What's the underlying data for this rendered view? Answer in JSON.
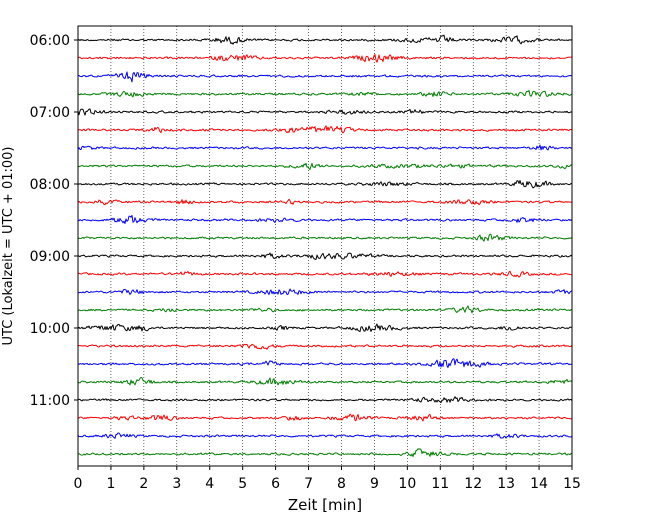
{
  "chart_data": {
    "type": "line",
    "title": "",
    "xlabel": "Zeit  [min]",
    "ylabel": "UTC (Lokalzeit = UTC + 01:00)",
    "xlim": [
      0,
      15
    ],
    "x_ticks": [
      0,
      1,
      2,
      3,
      4,
      5,
      6,
      7,
      8,
      9,
      10,
      11,
      12,
      13,
      14,
      15
    ],
    "y_tick_labels": [
      "06:00",
      "07:00",
      "08:00",
      "09:00",
      "10:00",
      "11:00"
    ],
    "y_tick_rows": [
      0,
      4,
      8,
      12,
      16,
      20
    ],
    "row_count": 24,
    "row_start_times": [
      "06:00",
      "06:15",
      "06:30",
      "06:45",
      "07:00",
      "07:15",
      "07:30",
      "07:45",
      "08:00",
      "08:15",
      "08:30",
      "08:45",
      "09:00",
      "09:15",
      "09:30",
      "09:45",
      "10:00",
      "10:15",
      "10:30",
      "10:45",
      "11:00",
      "11:15",
      "11:30",
      "11:45"
    ],
    "row_colors": [
      "#000000",
      "#ff0000",
      "#0000ff",
      "#007f00"
    ],
    "grid": "vertical-dotted",
    "legend": "none"
  }
}
